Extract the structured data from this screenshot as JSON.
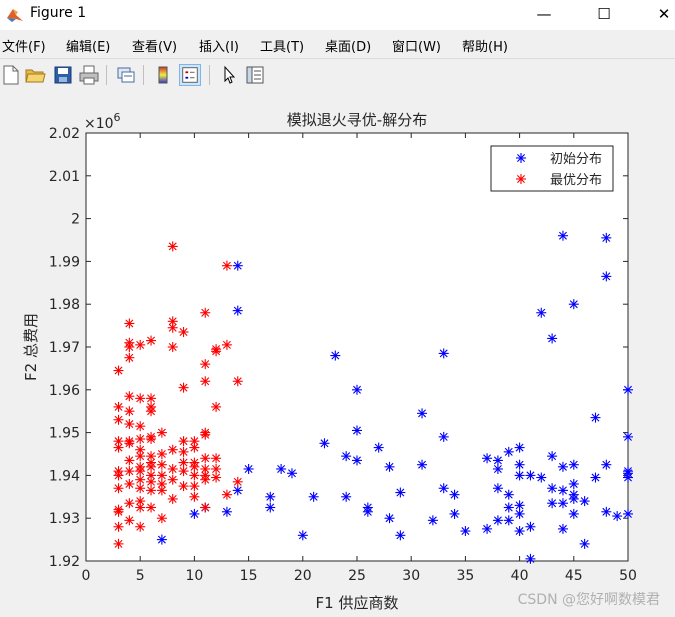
{
  "window": {
    "title": "Figure 1",
    "minimize": "—",
    "maximize": "☐",
    "close": "✕"
  },
  "menu": [
    "文件(F)",
    "编辑(E)",
    "查看(V)",
    "插入(I)",
    "工具(T)",
    "桌面(D)",
    "窗口(W)",
    "帮助(H)"
  ],
  "toolbar_icons": [
    "new-file-icon",
    "open-folder-icon",
    "save-icon",
    "print-icon",
    "link-figure-icon",
    "colorbar-icon",
    "legend-icon",
    "pointer-icon",
    "property-inspector-icon"
  ],
  "watermark": "CSDN @您好啊数模君",
  "chart_data": {
    "type": "scatter",
    "title": "模拟退火寻优-解分布",
    "xlabel": "F1 供应商数",
    "ylabel": "F2 总费用",
    "exponent_label": "×10",
    "exponent_power": "6",
    "xlim": [
      0,
      50
    ],
    "ylim": [
      1920000,
      2020000
    ],
    "xticks": [
      0,
      5,
      10,
      15,
      20,
      25,
      30,
      35,
      40,
      45,
      50
    ],
    "xtick_labels": [
      "0",
      "5",
      "10",
      "15",
      "20",
      "25",
      "30",
      "35",
      "40",
      "45",
      "50"
    ],
    "yticks": [
      1920000,
      1930000,
      1940000,
      1950000,
      1960000,
      1970000,
      1980000,
      1990000,
      2000000,
      2010000,
      2020000
    ],
    "ytick_labels": [
      "1.92",
      "1.93",
      "1.94",
      "1.95",
      "1.96",
      "1.97",
      "1.98",
      "1.99",
      "2",
      "2.01",
      "2.02"
    ],
    "grid": false,
    "legend_position": "top-right",
    "series": [
      {
        "name": "初始分布",
        "color": "#0000ff",
        "marker": "*",
        "x": [
          7,
          10,
          11,
          13,
          14,
          14,
          14,
          15,
          17,
          17,
          18,
          19,
          20,
          21,
          22,
          23,
          24,
          24,
          25,
          25,
          25,
          26,
          26,
          27,
          28,
          28,
          29,
          29,
          31,
          31,
          32,
          33,
          33,
          33,
          34,
          34,
          35,
          37,
          37,
          38,
          38,
          38,
          38,
          39,
          39,
          39,
          39,
          40,
          40,
          40,
          40,
          40,
          40,
          41,
          41,
          41,
          42,
          42,
          43,
          43,
          43,
          43,
          44,
          44,
          44,
          44,
          44,
          45,
          45,
          45,
          45,
          45,
          45,
          46,
          46,
          47,
          47,
          48,
          48,
          48,
          48,
          49,
          50,
          50,
          50,
          50,
          50,
          50
        ],
        "y": [
          1925000,
          1931000,
          1932500,
          1931500,
          1936500,
          1978500,
          1989000,
          1941500,
          1935000,
          1932500,
          1941500,
          1940500,
          1926000,
          1935000,
          1947500,
          1968000,
          1944500,
          1935000,
          1960000,
          1950500,
          1943500,
          1932500,
          1931500,
          1946500,
          1942000,
          1930000,
          1936000,
          1926000,
          1954500,
          1942500,
          1929500,
          1968500,
          1949000,
          1937000,
          1935500,
          1931000,
          1927000,
          1944000,
          1927500,
          1943500,
          1941500,
          1937000,
          1929500,
          1945500,
          1935500,
          1932500,
          1929500,
          1946500,
          1942500,
          1940000,
          1933000,
          1931000,
          1927000,
          1940000,
          1928000,
          1920500,
          1978000,
          1939500,
          1972000,
          1944500,
          1937000,
          1933500,
          1996000,
          1942000,
          1936500,
          1933500,
          1927500,
          1980000,
          1942500,
          1938000,
          1935500,
          1934500,
          1931000,
          1934000,
          1924000,
          1953500,
          1939500,
          1995500,
          1986500,
          1942500,
          1931500,
          1930500,
          1960000,
          1949000,
          1941000,
          1940500,
          1939500,
          1931000
        ]
      },
      {
        "name": "最优分布",
        "color": "#ff0000",
        "marker": "*",
        "x": [
          3,
          3,
          3,
          3,
          3,
          3,
          3,
          3,
          3,
          3,
          3,
          3,
          4,
          4,
          4,
          4,
          4,
          4,
          4,
          4,
          4,
          4,
          4,
          4,
          4,
          4,
          5,
          5,
          5,
          5,
          5,
          5,
          5,
          5,
          5,
          5,
          5,
          5,
          5,
          6,
          6,
          6,
          6,
          6,
          6,
          6,
          6,
          6,
          6,
          6,
          6,
          6,
          7,
          7,
          7,
          7,
          7,
          7,
          7,
          8,
          8,
          8,
          8,
          8,
          8,
          8,
          8,
          9,
          9,
          9,
          9,
          9,
          9,
          9,
          10,
          10,
          10,
          10,
          10,
          10,
          10,
          11,
          11,
          11,
          11,
          11,
          11,
          11,
          11,
          11,
          11,
          12,
          12,
          12,
          12,
          12,
          12,
          13,
          13,
          13,
          14,
          14
        ],
        "y": [
          1924000,
          1928000,
          1931500,
          1932000,
          1937000,
          1940000,
          1941000,
          1946500,
          1948000,
          1953000,
          1956000,
          1964500,
          1929500,
          1933500,
          1938000,
          1941000,
          1943500,
          1947500,
          1948000,
          1952000,
          1955000,
          1958500,
          1967500,
          1970000,
          1971000,
          1975500,
          1928000,
          1932500,
          1934000,
          1937000,
          1939000,
          1941000,
          1942000,
          1944500,
          1946000,
          1948500,
          1951500,
          1958000,
          1970500,
          1932500,
          1936500,
          1938500,
          1940000,
          1942000,
          1943000,
          1944500,
          1948500,
          1949000,
          1955000,
          1956000,
          1958000,
          1971500,
          1930000,
          1936500,
          1938000,
          1940000,
          1942500,
          1945000,
          1950000,
          1934500,
          1939000,
          1941500,
          1946000,
          1970000,
          1974500,
          1976000,
          1993500,
          1937500,
          1941000,
          1943000,
          1945500,
          1948000,
          1960500,
          1973500,
          1935000,
          1937500,
          1940000,
          1942000,
          1943000,
          1946500,
          1948000,
          1932500,
          1939000,
          1940000,
          1941500,
          1944000,
          1949500,
          1950000,
          1962000,
          1966000,
          1978000,
          1939500,
          1941500,
          1944000,
          1956000,
          1969000,
          1969500,
          1935500,
          1970500,
          1989000,
          1962000,
          1938500
        ]
      }
    ]
  }
}
